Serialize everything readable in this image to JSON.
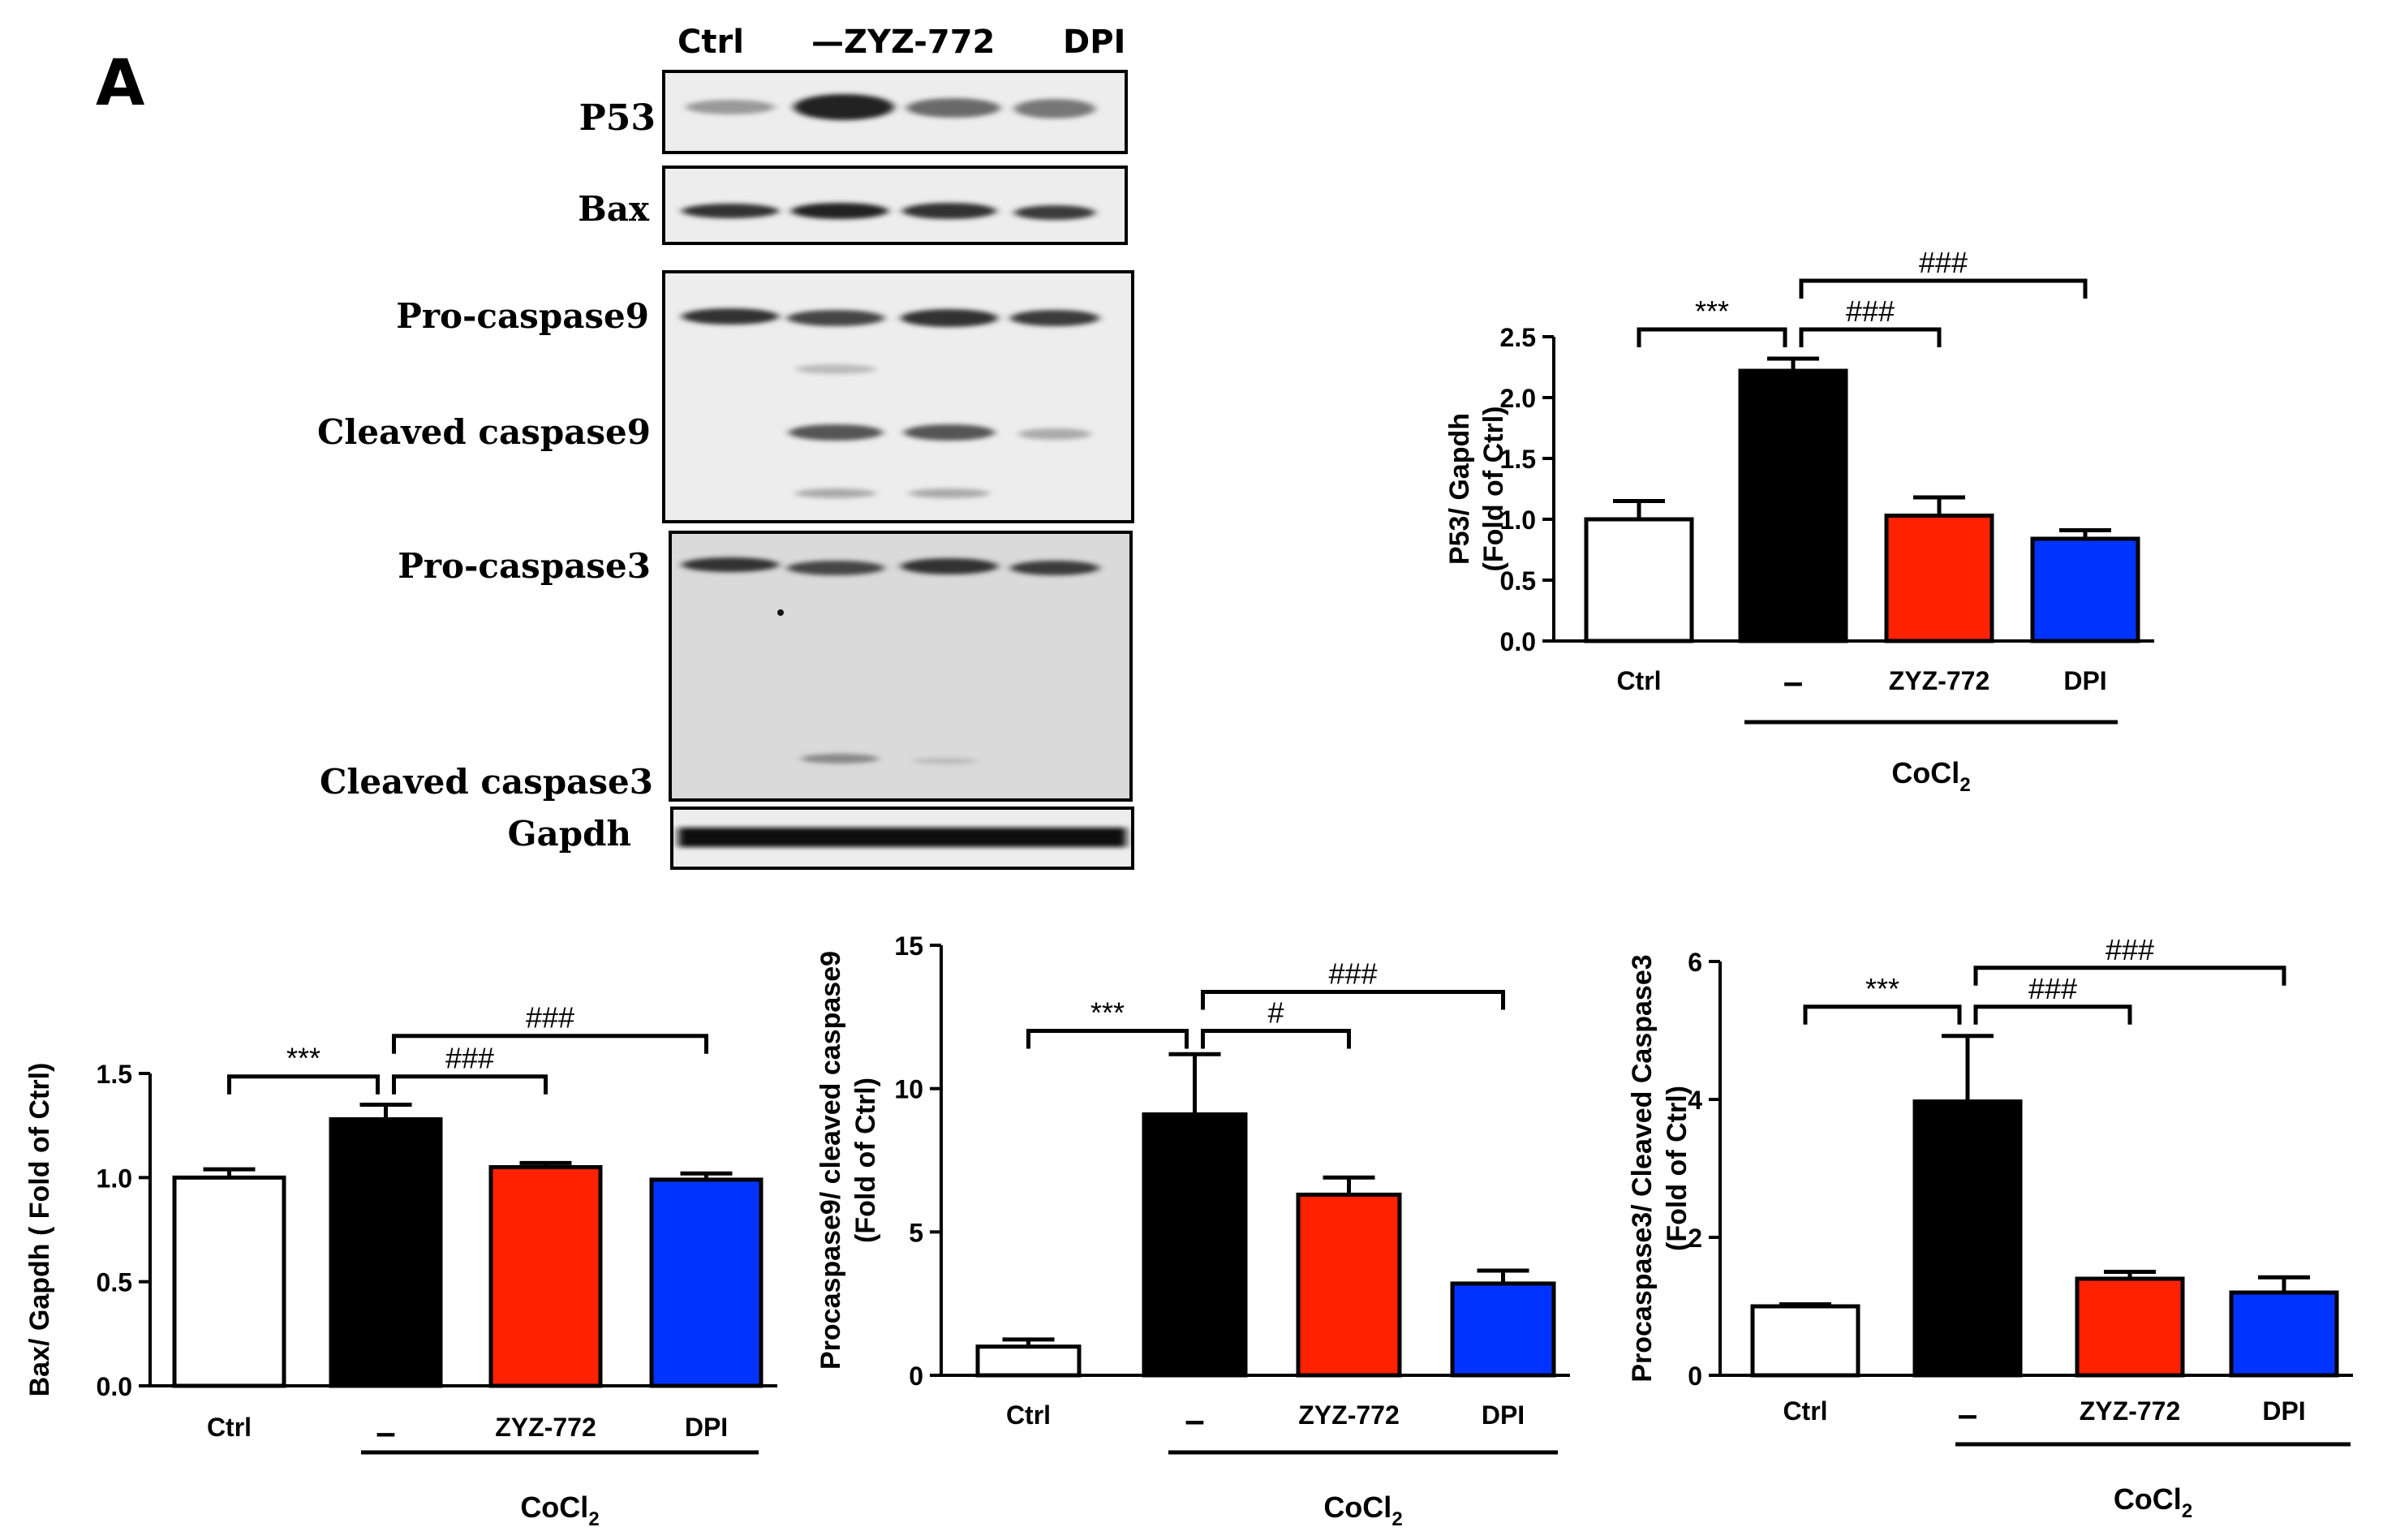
{
  "panel_label": "A",
  "blot": {
    "lanes": [
      "Ctrl",
      "—ZYZ-772",
      "DPI"
    ],
    "rows": [
      "P53",
      "Bax",
      "Pro-caspase9",
      "Cleaved caspase9",
      "Pro-caspase3",
      "Cleaved caspase3",
      "Gapdh"
    ]
  },
  "colors": {
    "ctrl": "#ffffff",
    "cocl2": "#000000",
    "zyz772": "#ff2200",
    "dpi": "#0033ff"
  },
  "chart_data": [
    {
      "id": "p53",
      "type": "bar",
      "title": "",
      "xlabel": "",
      "ylabel_lines": [
        "P53/ Gapdh",
        "(Fold of Ctrl)"
      ],
      "categories": [
        "Ctrl",
        "–",
        "ZYZ-772",
        "DPI"
      ],
      "values": [
        1.0,
        2.22,
        1.03,
        0.84
      ],
      "errors": [
        0.15,
        0.1,
        0.15,
        0.07
      ],
      "ylim": [
        0,
        2.5
      ],
      "yticks": [
        0.0,
        0.5,
        1.0,
        1.5,
        2.0,
        2.5
      ],
      "ytick_labels": [
        "0.0",
        "0.5",
        "1.0",
        "1.5",
        "2.0",
        "2.5"
      ],
      "group_label": "CoCl",
      "group_label_sub": "2",
      "significance": [
        {
          "from": 0,
          "to": 1,
          "label": "***"
        },
        {
          "from": 1,
          "to": 2,
          "label": "###"
        },
        {
          "from": 1,
          "to": 3,
          "label": "###"
        }
      ]
    },
    {
      "id": "bax",
      "type": "bar",
      "title": "",
      "xlabel": "",
      "ylabel_lines": [
        "Bax/ Gapdh ( Fold of Ctrl)"
      ],
      "categories": [
        "Ctrl",
        "–",
        "ZYZ-772",
        "DPI"
      ],
      "values": [
        1.0,
        1.28,
        1.05,
        0.99
      ],
      "errors": [
        0.04,
        0.07,
        0.02,
        0.03
      ],
      "ylim": [
        0,
        1.5
      ],
      "yticks": [
        0.0,
        0.5,
        1.0,
        1.5
      ],
      "ytick_labels": [
        "0.0",
        "0.5",
        "1.0",
        "1.5"
      ],
      "group_label": "CoCl",
      "group_label_sub": "2",
      "significance": [
        {
          "from": 0,
          "to": 1,
          "label": "***"
        },
        {
          "from": 1,
          "to": 2,
          "label": "###"
        },
        {
          "from": 1,
          "to": 3,
          "label": "###"
        }
      ]
    },
    {
      "id": "casp9",
      "type": "bar",
      "title": "",
      "xlabel": "",
      "ylabel_lines": [
        "Procaspase9/ cleaved caspase9",
        "(Fold of Ctrl)"
      ],
      "categories": [
        "Ctrl",
        "–",
        "ZYZ-772",
        "DPI"
      ],
      "values": [
        1.0,
        9.1,
        6.3,
        3.2
      ],
      "errors": [
        0.25,
        2.1,
        0.6,
        0.45
      ],
      "ylim": [
        0,
        15
      ],
      "yticks": [
        0,
        5,
        10,
        15
      ],
      "ytick_labels": [
        "0",
        "5",
        "10",
        "15"
      ],
      "group_label": "CoCl",
      "group_label_sub": "2",
      "significance": [
        {
          "from": 0,
          "to": 1,
          "label": "***"
        },
        {
          "from": 1,
          "to": 2,
          "label": "#"
        },
        {
          "from": 1,
          "to": 3,
          "label": "###"
        }
      ]
    },
    {
      "id": "casp3",
      "type": "bar",
      "title": "",
      "xlabel": "",
      "ylabel_lines": [
        "Procaspase3/ Cleaved Caspase3",
        "(Fold of Ctrl)"
      ],
      "categories": [
        "Ctrl",
        "–",
        "ZYZ-772",
        "DPI"
      ],
      "values": [
        1.0,
        3.97,
        1.4,
        1.2
      ],
      "errors": [
        0.03,
        0.95,
        0.1,
        0.22
      ],
      "ylim": [
        0,
        6
      ],
      "yticks": [
        0,
        2,
        4,
        6
      ],
      "ytick_labels": [
        "0",
        "2",
        "4",
        "6"
      ],
      "group_label": "CoCl",
      "group_label_sub": "2",
      "significance": [
        {
          "from": 0,
          "to": 1,
          "label": "***"
        },
        {
          "from": 1,
          "to": 2,
          "label": "###"
        },
        {
          "from": 1,
          "to": 3,
          "label": "###"
        }
      ]
    }
  ]
}
